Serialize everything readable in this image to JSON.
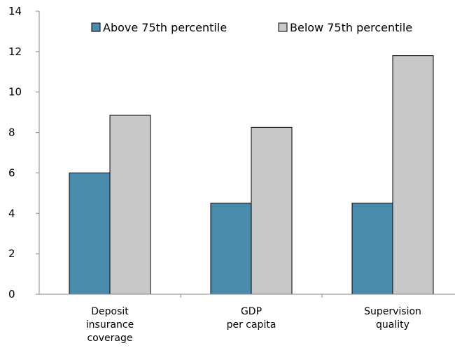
{
  "chart_data": {
    "type": "bar",
    "categories": [
      [
        "Deposit",
        "insurance",
        "coverage"
      ],
      [
        "GDP",
        "per capita"
      ],
      [
        "Supervision",
        "quality"
      ]
    ],
    "series": [
      {
        "name": "Above 75th percentile",
        "values": [
          6.0,
          4.5,
          4.5
        ],
        "color": "#4a8bad"
      },
      {
        "name": "Below 75th percentile",
        "values": [
          8.85,
          8.25,
          11.8
        ],
        "color": "#c8c8c8"
      }
    ],
    "ylim": [
      0,
      14
    ],
    "yticks": [
      0,
      2,
      4,
      6,
      8,
      10,
      12,
      14
    ],
    "grid": false,
    "legend_position": "top",
    "title": "",
    "xlabel": "",
    "ylabel": ""
  }
}
